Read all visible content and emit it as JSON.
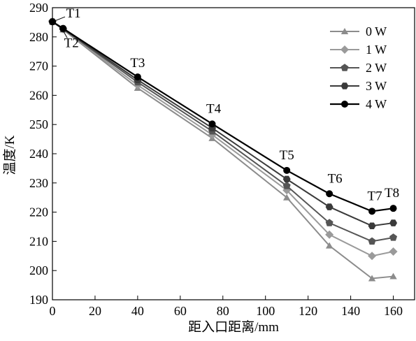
{
  "chart_data": {
    "type": "line",
    "xlabel": "距入口距离/mm",
    "ylabel": "温度/K",
    "xlim": [
      0,
      170
    ],
    "ylim": [
      190,
      290
    ],
    "xticks": [
      0,
      20,
      40,
      60,
      80,
      100,
      120,
      140,
      160
    ],
    "yticks": [
      190,
      200,
      210,
      220,
      230,
      240,
      250,
      260,
      270,
      280,
      290
    ],
    "x": [
      0,
      5,
      40,
      75,
      110,
      130,
      150,
      160
    ],
    "series": [
      {
        "name": "0 W",
        "values": [
          285.2,
          282.5,
          262.5,
          245.3,
          225.0,
          208.5,
          197.3,
          198.0
        ],
        "color": "#8c8c8c",
        "marker": "triangle"
      },
      {
        "name": "1 W",
        "values": [
          285.2,
          282.6,
          263.5,
          246.5,
          227.5,
          212.3,
          205.0,
          206.5
        ],
        "color": "#9a9a9a",
        "marker": "diamond"
      },
      {
        "name": "2 W",
        "values": [
          285.2,
          282.7,
          264.5,
          247.7,
          229.0,
          216.3,
          210.0,
          211.3
        ],
        "color": "#555555",
        "marker": "pentagon"
      },
      {
        "name": "3 W",
        "values": [
          285.2,
          282.8,
          265.3,
          248.8,
          231.3,
          221.8,
          215.3,
          216.3
        ],
        "color": "#3a3a3a",
        "marker": "hexagon"
      },
      {
        "name": "4 W",
        "values": [
          285.2,
          282.9,
          266.3,
          250.2,
          234.3,
          226.3,
          220.3,
          221.3
        ],
        "color": "#000000",
        "marker": "circle"
      }
    ],
    "annotations": [
      {
        "text": "T1",
        "x": 0,
        "y": 285.2
      },
      {
        "text": "T2",
        "x": 5,
        "y": 282.7
      },
      {
        "text": "T3",
        "x": 40,
        "y": 266.3
      },
      {
        "text": "T4",
        "x": 75,
        "y": 250.2
      },
      {
        "text": "T5",
        "x": 110,
        "y": 234.3
      },
      {
        "text": "T6",
        "x": 130,
        "y": 226.3
      },
      {
        "text": "T7",
        "x": 150,
        "y": 220.3
      },
      {
        "text": "T8",
        "x": 160,
        "y": 221.3
      }
    ],
    "legend": "top-right",
    "grid": false
  }
}
